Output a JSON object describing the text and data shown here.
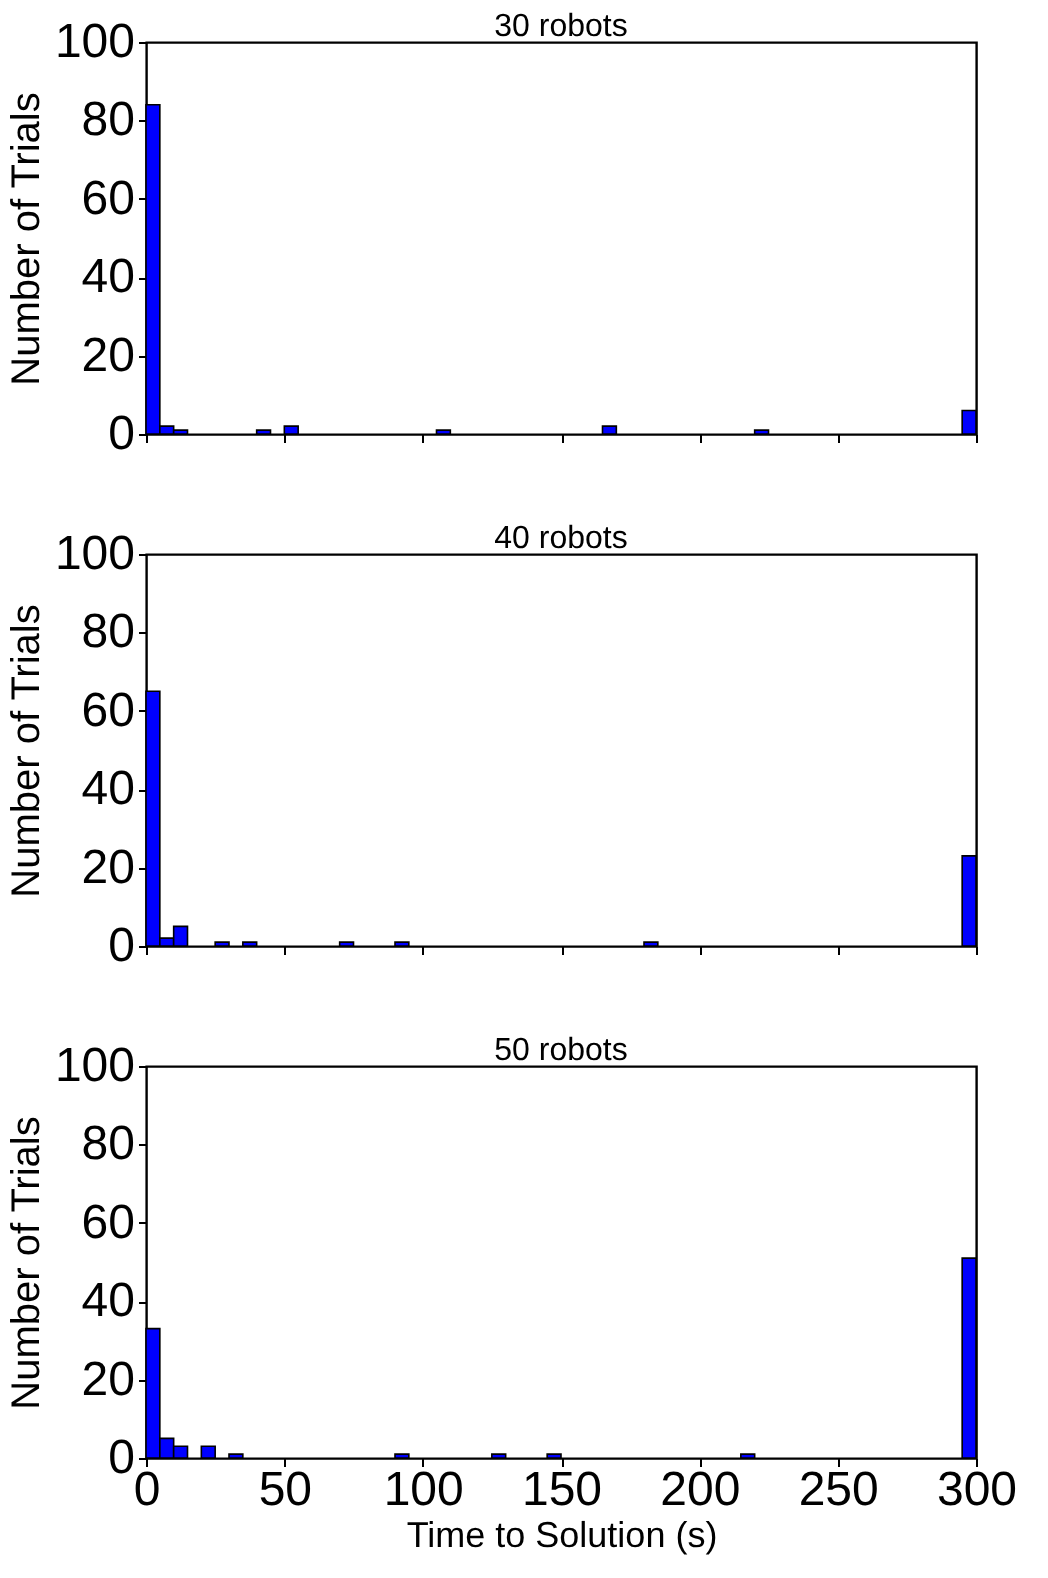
{
  "chart_data": [
    {
      "type": "histogram",
      "title": "30 robots",
      "ylabel": "Number of Trials",
      "tick_labels": "y",
      "color": "#0000ff",
      "bins": [
        0,
        5,
        10,
        15,
        20,
        25,
        30,
        35,
        40,
        45,
        50,
        55,
        60,
        65,
        70,
        75,
        80,
        85,
        90,
        95,
        100,
        105,
        110,
        115,
        120,
        125,
        130,
        135,
        140,
        145,
        150,
        155,
        160,
        165,
        170,
        175,
        180,
        185,
        190,
        195,
        200,
        205,
        210,
        215,
        220,
        225,
        230,
        235,
        240,
        245,
        250,
        255,
        260,
        265,
        270,
        275,
        280,
        285,
        290,
        295,
        300
      ],
      "values": [
        84,
        2,
        1,
        0,
        0,
        0,
        0,
        0,
        1,
        0,
        2,
        0,
        0,
        0,
        0,
        0,
        0,
        0,
        0,
        0,
        0,
        1,
        0,
        0,
        0,
        0,
        0,
        0,
        0,
        0,
        0,
        0,
        0,
        2,
        0,
        0,
        0,
        0,
        0,
        0,
        0,
        0,
        0,
        0,
        1,
        0,
        0,
        0,
        0,
        0,
        0,
        0,
        0,
        0,
        0,
        0,
        0,
        0,
        0,
        6
      ],
      "xlim": [
        0,
        300
      ],
      "xticks": [
        0,
        50,
        100,
        150,
        200,
        250,
        300
      ],
      "ylim": [
        0,
        100
      ],
      "yticks": [
        0,
        20,
        40,
        60,
        80,
        100
      ],
      "grid": false
    },
    {
      "type": "histogram",
      "title": "40 robots",
      "ylabel": "Number of Trials",
      "tick_labels": "y",
      "color": "#0000ff",
      "bins": [
        0,
        5,
        10,
        15,
        20,
        25,
        30,
        35,
        40,
        45,
        50,
        55,
        60,
        65,
        70,
        75,
        80,
        85,
        90,
        95,
        100,
        105,
        110,
        115,
        120,
        125,
        130,
        135,
        140,
        145,
        150,
        155,
        160,
        165,
        170,
        175,
        180,
        185,
        190,
        195,
        200,
        205,
        210,
        215,
        220,
        225,
        230,
        235,
        240,
        245,
        250,
        255,
        260,
        265,
        270,
        275,
        280,
        285,
        290,
        295,
        300
      ],
      "values": [
        65,
        2,
        5,
        0,
        0,
        1,
        0,
        1,
        0,
        0,
        0,
        0,
        0,
        0,
        1,
        0,
        0,
        0,
        1,
        0,
        0,
        0,
        0,
        0,
        0,
        0,
        0,
        0,
        0,
        0,
        0,
        0,
        0,
        0,
        0,
        0,
        1,
        0,
        0,
        0,
        0,
        0,
        0,
        0,
        0,
        0,
        0,
        0,
        0,
        0,
        0,
        0,
        0,
        0,
        0,
        0,
        0,
        0,
        0,
        23
      ],
      "xlim": [
        0,
        300
      ],
      "xticks": [
        0,
        50,
        100,
        150,
        200,
        250,
        300
      ],
      "ylim": [
        0,
        100
      ],
      "yticks": [
        0,
        20,
        40,
        60,
        80,
        100
      ],
      "grid": false
    },
    {
      "type": "histogram",
      "title": "50 robots",
      "ylabel": "Number of Trials",
      "xlabel": "Time to Solution (s)",
      "color": "#0000ff",
      "bins": [
        0,
        5,
        10,
        15,
        20,
        25,
        30,
        35,
        40,
        45,
        50,
        55,
        60,
        65,
        70,
        75,
        80,
        85,
        90,
        95,
        100,
        105,
        110,
        115,
        120,
        125,
        130,
        135,
        140,
        145,
        150,
        155,
        160,
        165,
        170,
        175,
        180,
        185,
        190,
        195,
        200,
        205,
        210,
        215,
        220,
        225,
        230,
        235,
        240,
        245,
        250,
        255,
        260,
        265,
        270,
        275,
        280,
        285,
        290,
        295,
        300
      ],
      "values": [
        33,
        5,
        3,
        0,
        3,
        0,
        1,
        0,
        0,
        0,
        0,
        0,
        0,
        0,
        0,
        0,
        0,
        0,
        1,
        0,
        0,
        0,
        0,
        0,
        0,
        1,
        0,
        0,
        0,
        1,
        0,
        0,
        0,
        0,
        0,
        0,
        0,
        0,
        0,
        0,
        0,
        0,
        0,
        1,
        0,
        0,
        0,
        0,
        0,
        0,
        0,
        0,
        0,
        0,
        0,
        0,
        0,
        0,
        0,
        51
      ],
      "xlim": [
        0,
        300
      ],
      "xticks": [
        0,
        50,
        100,
        150,
        200,
        250,
        300
      ],
      "ylim": [
        0,
        100
      ],
      "yticks": [
        0,
        20,
        40,
        60,
        80,
        100
      ],
      "grid": false
    }
  ]
}
